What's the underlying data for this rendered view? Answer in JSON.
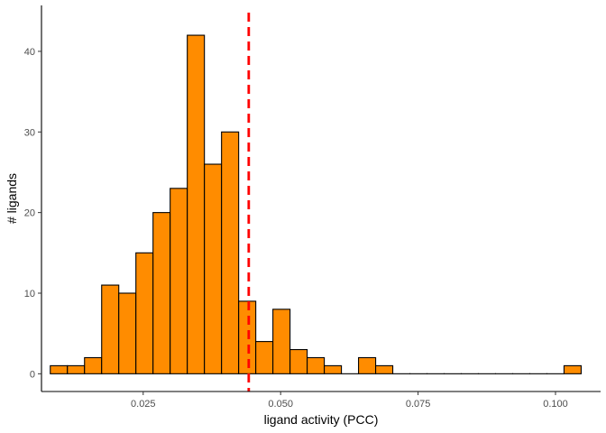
{
  "chart_data": {
    "type": "bar",
    "subtype": "histogram",
    "xlabel": "ligand activity (PCC)",
    "ylabel": "# ligands",
    "xlim": [
      0.0065,
      0.1082
    ],
    "ylim": [
      -2.2,
      45.7
    ],
    "x_ticks": [
      0.025,
      0.05,
      0.075,
      0.1
    ],
    "x_tick_labels": [
      "0.025",
      "0.050",
      "0.075",
      "0.100"
    ],
    "y_ticks": [
      0,
      10,
      20,
      30,
      40
    ],
    "y_tick_labels": [
      "0",
      "10",
      "20",
      "30",
      "40"
    ],
    "bin_start": 0.0081,
    "bin_width": 0.003115,
    "counts": [
      1,
      1,
      2,
      11,
      10,
      15,
      20,
      23,
      42,
      26,
      30,
      9,
      4,
      8,
      3,
      2,
      1,
      0,
      2,
      1,
      0,
      0,
      0,
      0,
      0,
      0,
      0,
      0,
      0,
      0,
      1
    ],
    "threshold_line": {
      "x": 0.0442,
      "color": "#ff0000",
      "style": "dashed"
    },
    "bar_fill": "#ff8c00",
    "bar_stroke": "#000000",
    "grid": false,
    "legend": "none"
  }
}
